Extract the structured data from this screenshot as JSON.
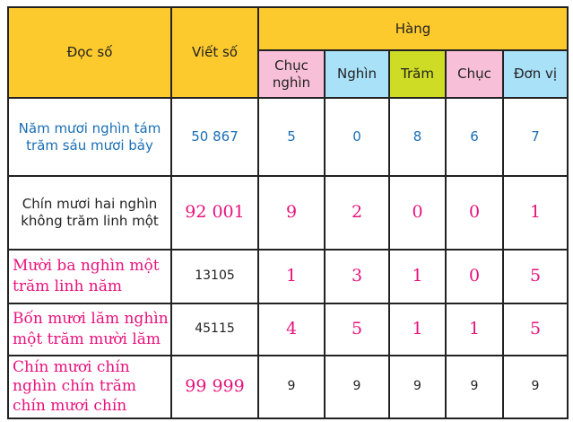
{
  "header": {
    "doc_so": "Đọc số",
    "viet_so": "Viết số",
    "hang": "Hàng",
    "places": [
      "Chục nghìn",
      "Nghìn",
      "Trăm",
      "Chục",
      "Đơn vị"
    ]
  },
  "colors": {
    "header": "#fdca2e",
    "pink": "#f8c0d8",
    "blue": "#a9e1f8",
    "green": "#cfdc26",
    "blue_text": "#1b6fb5",
    "pink_text": "#e8127c"
  },
  "rows": [
    {
      "read": "Năm mươi nghìn tám trăm sáu mươi bảy",
      "write": "50 867",
      "digits": [
        "5",
        "0",
        "8",
        "6",
        "7"
      ]
    },
    {
      "read": "Chín mươi hai nghìn không trăm linh một",
      "write": "92 001",
      "digits": [
        "9",
        "2",
        "0",
        "0",
        "1"
      ]
    },
    {
      "read": "Mười ba nghìn một trăm linh năm",
      "write": "13105",
      "digits": [
        "1",
        "3",
        "1",
        "0",
        "5"
      ]
    },
    {
      "read": "Bốn mươi lăm nghìn một trăm mười lăm",
      "write": "45115",
      "digits": [
        "4",
        "5",
        "1",
        "1",
        "5"
      ]
    },
    {
      "read": "Chín mươi chín nghìn chín trăm chín mươi chín",
      "write": "99 999",
      "digits": [
        "9",
        "9",
        "9",
        "9",
        "9"
      ]
    }
  ]
}
